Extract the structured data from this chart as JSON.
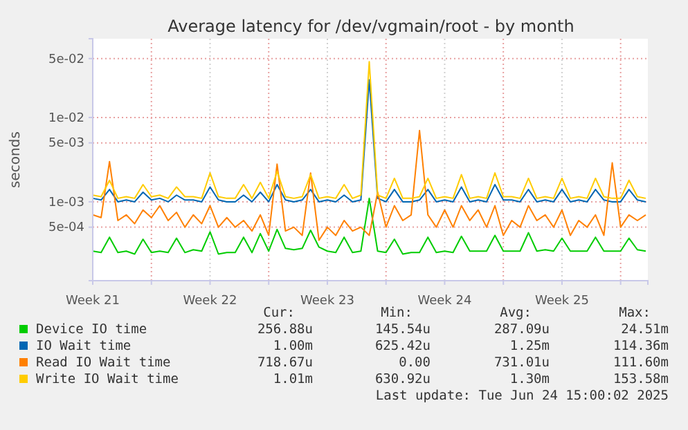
{
  "chart_data": {
    "type": "line",
    "title": "Average latency for /dev/vgmain/root - by month",
    "ylabel": "seconds",
    "log": true,
    "grid": true,
    "legend": "bottom",
    "x": [
      "2025-05-22T12:00",
      "2025-05-23T00:00",
      "2025-05-23T12:00",
      "2025-05-24T00:00",
      "2025-05-24T12:00",
      "2025-05-25T00:00",
      "2025-05-25T12:00",
      "2025-05-26T00:00",
      "2025-05-26T12:00",
      "2025-05-27T00:00",
      "2025-05-27T12:00",
      "2025-05-28T00:00",
      "2025-05-28T12:00",
      "2025-05-29T00:00",
      "2025-05-29T12:00",
      "2025-05-30T00:00",
      "2025-05-30T12:00",
      "2025-05-31T00:00",
      "2025-05-31T12:00",
      "2025-06-01T00:00",
      "2025-06-01T12:00",
      "2025-06-02T00:00",
      "2025-06-02T12:00",
      "2025-06-03T00:00",
      "2025-06-03T12:00",
      "2025-06-04T00:00",
      "2025-06-04T12:00",
      "2025-06-05T00:00",
      "2025-06-05T12:00",
      "2025-06-06T00:00",
      "2025-06-06T12:00",
      "2025-06-07T00:00",
      "2025-06-07T12:00",
      "2025-06-08T00:00",
      "2025-06-08T12:00",
      "2025-06-09T00:00",
      "2025-06-09T12:00",
      "2025-06-10T00:00",
      "2025-06-10T12:00",
      "2025-06-11T00:00",
      "2025-06-11T12:00",
      "2025-06-12T00:00",
      "2025-06-12T12:00",
      "2025-06-13T00:00",
      "2025-06-13T12:00",
      "2025-06-14T00:00",
      "2025-06-14T12:00",
      "2025-06-15T00:00",
      "2025-06-15T12:00",
      "2025-06-16T00:00",
      "2025-06-16T12:00",
      "2025-06-17T00:00",
      "2025-06-17T12:00",
      "2025-06-18T00:00",
      "2025-06-18T12:00",
      "2025-06-19T00:00",
      "2025-06-19T12:00",
      "2025-06-20T00:00",
      "2025-06-20T12:00",
      "2025-06-21T00:00",
      "2025-06-21T12:00",
      "2025-06-22T00:00",
      "2025-06-22T12:00",
      "2025-06-23T00:00",
      "2025-06-23T12:00",
      "2025-06-24T00:00",
      "2025-06-24T12:00"
    ],
    "xlim": [
      "2025-05-22T12:00",
      "2025-06-24T15:00"
    ],
    "xticks": [
      {
        "value": "2025-05-22T12:00",
        "label": "Week 21"
      },
      {
        "value": "2025-05-26",
        "label": null
      },
      {
        "value": "2025-05-29T12:00",
        "label": "Week 22"
      },
      {
        "value": "2025-06-02",
        "label": null
      },
      {
        "value": "2025-06-05T12:00",
        "label": "Week 23"
      },
      {
        "value": "2025-06-09",
        "label": null
      },
      {
        "value": "2025-06-12T12:00",
        "label": "Week 24"
      },
      {
        "value": "2025-06-16",
        "label": null
      },
      {
        "value": "2025-06-19T12:00",
        "label": "Week 25"
      },
      {
        "value": "2025-06-23",
        "label": null
      }
    ],
    "ylim": [
      0.000116,
      0.086
    ],
    "yticks": [
      {
        "value": 0.0005,
        "label": "5e-04"
      },
      {
        "value": 0.001,
        "label": "1e-03"
      },
      {
        "value": 0.005,
        "label": "5e-03"
      },
      {
        "value": 0.01,
        "label": "1e-02"
      },
      {
        "value": 0.05,
        "label": "5e-02"
      }
    ],
    "series": [
      {
        "name": "Device IO time",
        "color": "#00cc00",
        "values": [
          0.00026,
          0.00025,
          0.00038,
          0.00025,
          0.00026,
          0.00024,
          0.00036,
          0.00025,
          0.00026,
          0.00025,
          0.00037,
          0.00025,
          0.00027,
          0.00026,
          0.00044,
          0.00024,
          0.00025,
          0.00025,
          0.00038,
          0.00025,
          0.00042,
          0.00026,
          0.00047,
          0.00028,
          0.00027,
          0.00028,
          0.00046,
          0.00029,
          0.00026,
          0.00025,
          0.00038,
          0.00025,
          0.00026,
          0.0011,
          0.00026,
          0.00025,
          0.00036,
          0.00024,
          0.00025,
          0.00025,
          0.00038,
          0.00025,
          0.00026,
          0.00025,
          0.00039,
          0.00026,
          0.00026,
          0.00026,
          0.0004,
          0.00026,
          0.00026,
          0.00026,
          0.00043,
          0.00026,
          0.00027,
          0.00026,
          0.00037,
          0.00026,
          0.00026,
          0.00026,
          0.00038,
          0.00026,
          0.00026,
          0.00026,
          0.00037,
          0.00027,
          0.00026
        ]
      },
      {
        "name": "IO Wait time",
        "color": "#0066b3",
        "values": [
          0.0011,
          0.00105,
          0.0014,
          0.001,
          0.00105,
          0.001,
          0.0013,
          0.00105,
          0.0011,
          0.001,
          0.0012,
          0.00105,
          0.00105,
          0.001,
          0.0015,
          0.00105,
          0.001,
          0.001,
          0.0012,
          0.001,
          0.0013,
          0.001,
          0.0016,
          0.00105,
          0.001,
          0.00105,
          0.0014,
          0.001,
          0.00105,
          0.001,
          0.0012,
          0.001,
          0.00105,
          0.028,
          0.0011,
          0.001,
          0.0014,
          0.001,
          0.001,
          0.00105,
          0.0014,
          0.001,
          0.00105,
          0.001,
          0.0015,
          0.001,
          0.00105,
          0.001,
          0.0016,
          0.00105,
          0.00105,
          0.001,
          0.0014,
          0.001,
          0.00105,
          0.001,
          0.0014,
          0.001,
          0.00105,
          0.001,
          0.0014,
          0.00105,
          0.001,
          0.001,
          0.0014,
          0.00105,
          0.001
        ]
      },
      {
        "name": "Read IO Wait time",
        "color": "#ff8000",
        "values": [
          0.0007,
          0.00065,
          0.003,
          0.0006,
          0.0007,
          0.00055,
          0.0008,
          0.00065,
          0.0009,
          0.0006,
          0.00075,
          0.0005,
          0.0007,
          0.00055,
          0.0009,
          0.0005,
          0.00065,
          0.0005,
          0.0006,
          0.00045,
          0.0007,
          0.0004,
          0.0028,
          0.00045,
          0.0005,
          0.0004,
          0.0022,
          0.00035,
          0.0005,
          0.0004,
          0.0006,
          0.00045,
          0.0005,
          0.0004,
          0.0013,
          0.0005,
          0.0009,
          0.0006,
          0.0007,
          0.007,
          0.0007,
          0.0005,
          0.0008,
          0.0005,
          0.0009,
          0.0006,
          0.0008,
          0.0005,
          0.0009,
          0.0004,
          0.0006,
          0.0005,
          0.0009,
          0.0006,
          0.0007,
          0.0005,
          0.0008,
          0.0004,
          0.0006,
          0.0005,
          0.0007,
          0.0004,
          0.0029,
          0.0005,
          0.0007,
          0.0006,
          0.0007
        ]
      },
      {
        "name": "Write IO Wait time",
        "color": "#ffcc00",
        "values": [
          0.0012,
          0.00115,
          0.0018,
          0.0011,
          0.00115,
          0.0011,
          0.0016,
          0.00115,
          0.0012,
          0.0011,
          0.0015,
          0.00115,
          0.00115,
          0.0011,
          0.0022,
          0.00115,
          0.0011,
          0.0011,
          0.0016,
          0.0011,
          0.0017,
          0.0011,
          0.0023,
          0.00115,
          0.0011,
          0.00115,
          0.0021,
          0.0011,
          0.00115,
          0.0011,
          0.0016,
          0.0011,
          0.0012,
          0.046,
          0.0012,
          0.0011,
          0.0019,
          0.0011,
          0.0011,
          0.00115,
          0.0019,
          0.0011,
          0.00115,
          0.0011,
          0.0021,
          0.0011,
          0.00115,
          0.0011,
          0.0022,
          0.00115,
          0.00115,
          0.0011,
          0.0019,
          0.0011,
          0.00115,
          0.0011,
          0.0019,
          0.0011,
          0.00115,
          0.0011,
          0.0019,
          0.00115,
          0.0011,
          0.0011,
          0.0018,
          0.00115,
          0.0011
        ]
      }
    ],
    "annotations": [
      "Cur:",
      "Min:",
      "Avg:",
      "Max:",
      "256.88u",
      "145.54u",
      "287.09u",
      "24.51m",
      "1.00m",
      "625.42u",
      "1.25m",
      "114.36m",
      "718.67u",
      "0.00",
      "731.01u",
      "111.60m",
      "1.01m",
      "630.92u",
      "1.30m",
      "153.58m",
      "Last update: Tue Jun 24 15:00:02 2025"
    ]
  }
}
